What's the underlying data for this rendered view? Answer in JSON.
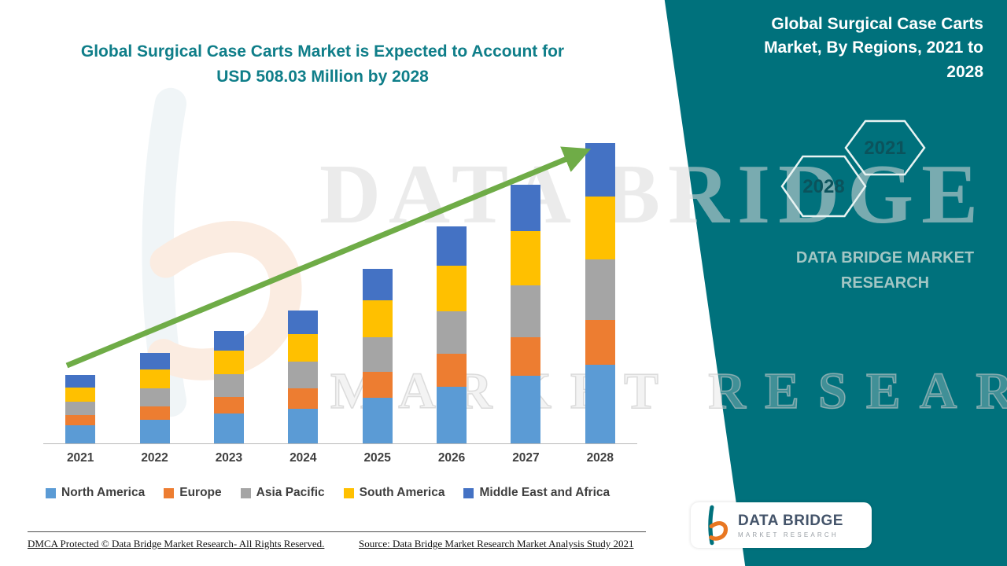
{
  "page": {
    "title_line1": "Global Surgical Case Carts Market is Expected to Account for",
    "title_line2": "USD 508.03 Million by 2028",
    "title_color": "#0F7E89",
    "footer_left": "DMCA Protected © Data Bridge Market Research- All Rights Reserved.",
    "footer_source": "Source: Data Bridge Market Research Market Analysis Study 2021"
  },
  "side_panel": {
    "title": "Global Surgical Case Carts Market, By Regions, 2021 to 2028",
    "background_color": "#00717C",
    "hexagons": [
      {
        "year": "2028"
      },
      {
        "year": "2021"
      }
    ],
    "brand_line1": "DATA BRIDGE MARKET",
    "brand_line2": "RESEARCH"
  },
  "logo_box": {
    "brand": "DATA BRIDGE",
    "sub": "MARKET RESEARCH"
  },
  "watermark": {
    "line1": "DATA BRIDGE",
    "line2": "MARKET RESEARCH"
  },
  "colors": {
    "teal": "#00717C",
    "arrow_green": "#6FAC47",
    "logo_orange": "#E87722",
    "logo_navy": "#44546A"
  },
  "chart_data": {
    "type": "bar",
    "stacked": true,
    "title": "Global Surgical Case Carts Market is Expected to Account for USD 508.03 Million by 2028",
    "unit": "USD Million",
    "categories": [
      "2021",
      "2022",
      "2023",
      "2024",
      "2025",
      "2026",
      "2027",
      "2028"
    ],
    "series": [
      {
        "name": "North America",
        "color": "#5B9BD5",
        "values": [
          30,
          40,
          50,
          59,
          77,
          96,
          114,
          133
        ]
      },
      {
        "name": "Europe",
        "color": "#ED7D31",
        "values": [
          18,
          23,
          29,
          34,
          44,
          55,
          66,
          76
        ]
      },
      {
        "name": "Asia Pacific",
        "color": "#A5A5A5",
        "values": [
          22,
          30,
          38,
          45,
          59,
          73,
          87,
          102.03
        ]
      },
      {
        "name": "South America",
        "color": "#FFC000",
        "values": [
          24,
          32,
          40,
          47,
          62,
          77,
          92,
          107
        ]
      },
      {
        "name": "Middle East and Africa",
        "color": "#4472C4",
        "values": [
          22,
          28,
          33,
          40,
          53,
          66,
          78,
          90
        ]
      }
    ],
    "totals_estimated": [
      116,
      153,
      190,
      225,
      295,
      367,
      437,
      508.03
    ],
    "ylim": [
      0,
      520
    ],
    "y_axis_visible": false,
    "grid": false,
    "legend_position": "bottom",
    "trend_arrow": true,
    "trend_arrow_color": "#6FAC47"
  }
}
